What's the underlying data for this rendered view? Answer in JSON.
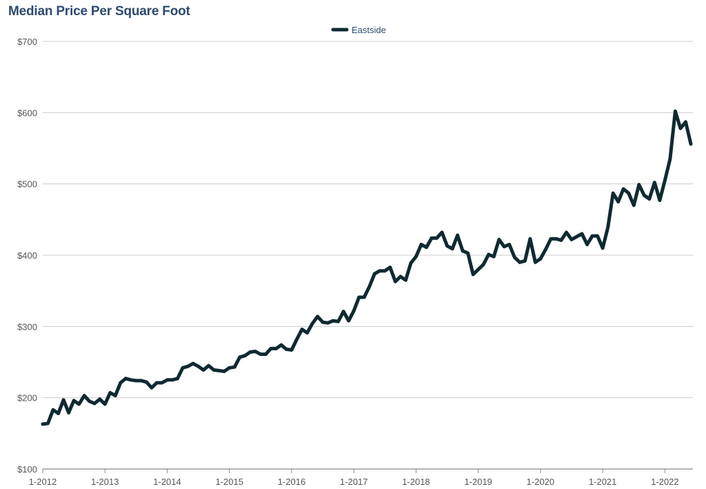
{
  "chart_data": {
    "type": "line",
    "title": "Median Price Per Square Foot",
    "xlabel": "",
    "ylabel": "",
    "ylim": [
      100,
      700
    ],
    "yticks": [
      100,
      200,
      300,
      400,
      500,
      600,
      700
    ],
    "ytick_labels": [
      "$100",
      "$200",
      "$300",
      "$400",
      "$500",
      "$600",
      "$700"
    ],
    "xticks": [
      "1-2012",
      "1-2013",
      "1-2014",
      "1-2015",
      "1-2016",
      "1-2017",
      "1-2018",
      "1-2019",
      "1-2020",
      "1-2021",
      "1-2022"
    ],
    "x_start": "2012-01",
    "x_end": "2022-06",
    "grid": true,
    "legend": "top-center",
    "color": "#0f2a30",
    "series": [
      {
        "name": "Eastside",
        "values": [
          163,
          164,
          183,
          178,
          197,
          179,
          196,
          191,
          203,
          195,
          192,
          198,
          191,
          207,
          203,
          221,
          227,
          225,
          224,
          224,
          222,
          214,
          221,
          221,
          225,
          225,
          227,
          242,
          244,
          248,
          244,
          239,
          245,
          239,
          238,
          237,
          242,
          243,
          257,
          259,
          264,
          265,
          261,
          261,
          269,
          269,
          274,
          268,
          267,
          282,
          296,
          291,
          304,
          314,
          306,
          305,
          308,
          307,
          321,
          308,
          322,
          341,
          341,
          356,
          374,
          378,
          378,
          383,
          363,
          370,
          365,
          389,
          398,
          415,
          411,
          424,
          424,
          432,
          413,
          409,
          428,
          406,
          403,
          373,
          380,
          387,
          401,
          398,
          422,
          412,
          415,
          397,
          390,
          392,
          423,
          390,
          395,
          408,
          423,
          423,
          421,
          432,
          422,
          426,
          430,
          415,
          427,
          427,
          410,
          439,
          487,
          475,
          493,
          487,
          470,
          499,
          484,
          479,
          502,
          477,
          505,
          535,
          602,
          578,
          587,
          556
        ]
      }
    ]
  }
}
